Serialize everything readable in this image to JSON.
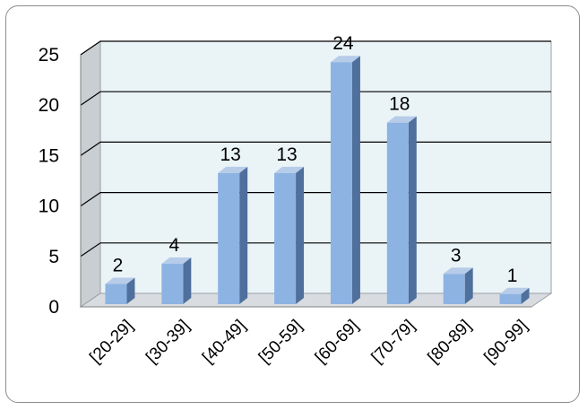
{
  "chart_data": {
    "type": "bar",
    "style": "3d-clustered-column",
    "categories": [
      "[20-29]",
      "[30-39]",
      "[40-49]",
      "[50-59]",
      "[60-69]",
      "[70-79]",
      "[80-89]",
      "[90-99]"
    ],
    "values": [
      2,
      4,
      13,
      13,
      24,
      18,
      3,
      1
    ],
    "data_labels": [
      "2",
      "4",
      "13",
      "13",
      "24",
      "18",
      "3",
      "1"
    ],
    "yticks": [
      "0",
      "5",
      "10",
      "15",
      "20",
      "25"
    ],
    "ylim": [
      0,
      25
    ],
    "title": "",
    "xlabel": "",
    "ylabel": "",
    "grid": true,
    "legend": "none",
    "colors": {
      "bar_front": "#8DB3E2",
      "bar_side": "#4F6F9C",
      "bar_top": "#B7CCE9",
      "back_wall": "#EAF4F7",
      "side_wall": "#C9CED3",
      "floor": "#D8DCE0",
      "gridline": "#000000"
    }
  }
}
